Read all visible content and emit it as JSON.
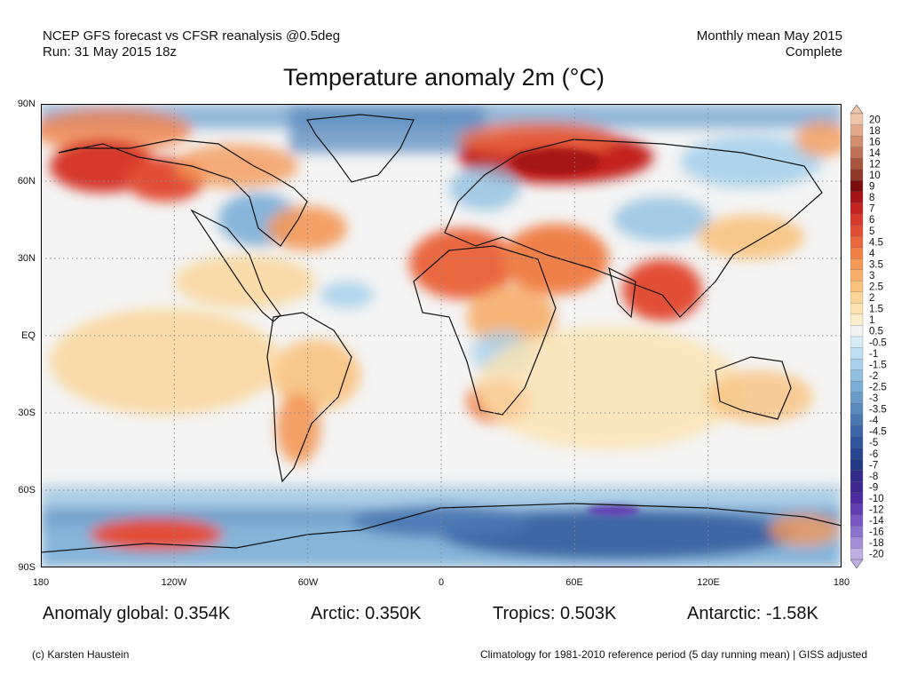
{
  "header": {
    "model_line": "NCEP GFS forecast vs CFSR reanalysis @0.5deg",
    "run_line": "Run: 31 May 2015 18z",
    "period_line": "Monthly mean May 2015",
    "status_line": "Complete"
  },
  "title": "Temperature anomaly 2m (°C)",
  "map": {
    "y_ticks": [
      "90N",
      "60N",
      "30N",
      "EQ",
      "30S",
      "60S",
      "90S"
    ],
    "x_ticks": [
      "180",
      "120W",
      "60W",
      "0",
      "60E",
      "120E",
      "180"
    ]
  },
  "colorbar": {
    "levels": [
      "20",
      "18",
      "16",
      "14",
      "12",
      "10",
      "9",
      "8",
      "7",
      "6",
      "5",
      "4.5",
      "4",
      "3.5",
      "3",
      "2.5",
      "2",
      "1.5",
      "1",
      "0.5",
      "-0.5",
      "-1",
      "-1.5",
      "-2",
      "-2.5",
      "-3",
      "-3.5",
      "-4",
      "-4.5",
      "-5",
      "-6",
      "-7",
      "-8",
      "-9",
      "-10",
      "-12",
      "-14",
      "-16",
      "-18",
      "-20"
    ],
    "colors": [
      "#f0c4a8",
      "#e2a98a",
      "#d38e6e",
      "#c07256",
      "#a8563e",
      "#8e3a28",
      "#7a0e0e",
      "#a51416",
      "#c4221e",
      "#d6382a",
      "#e24e34",
      "#ea6840",
      "#f08048",
      "#f49858",
      "#f6ae6a",
      "#f8c27e",
      "#fad496",
      "#fbe2b0",
      "#fcefcc",
      "#f2f2f2",
      "#d6ecf8",
      "#c0dff2",
      "#a8d0ea",
      "#90bfe0",
      "#7aaed6",
      "#6a9cca",
      "#5a8abe",
      "#4a78b2",
      "#3c66a6",
      "#30559a",
      "#28468e",
      "#223a82",
      "#302c88",
      "#3e2890",
      "#4c2c9e",
      "#6040b0",
      "#7658c0",
      "#8c72cc",
      "#a48ed8",
      "#beaee2"
    ]
  },
  "stats": {
    "global": "Anomaly global: 0.354K",
    "arctic": "Arctic: 0.350K",
    "tropics": "Tropics: 0.503K",
    "antarctic": "Antarctic: -1.58K"
  },
  "footer": {
    "credit": "(c) Karsten Haustein",
    "note": "Climatology for 1981-2010 reference period (5 day running mean) | GISS adjusted"
  }
}
